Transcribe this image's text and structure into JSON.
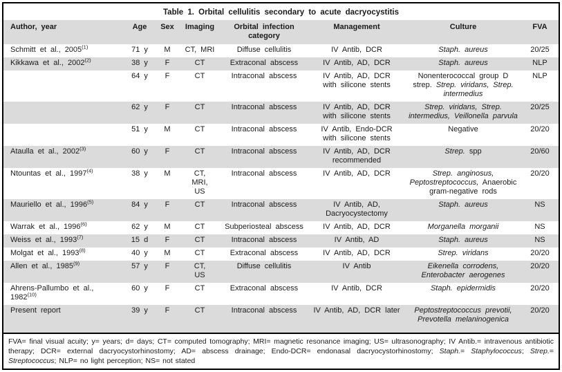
{
  "title": "Table 1. Orbital cellulitis secondary to acute dacryocystitis",
  "colors": {
    "stripe": "#dbdbdb",
    "border": "#000000",
    "text": "#1a1a1a",
    "background": "#ffffff"
  },
  "columns": [
    {
      "id": "author",
      "label": "Author, year",
      "align": "left"
    },
    {
      "id": "age",
      "label": "Age"
    },
    {
      "id": "sex",
      "label": "Sex"
    },
    {
      "id": "imaging",
      "label": "Imaging"
    },
    {
      "id": "category",
      "label": "Orbital infection category"
    },
    {
      "id": "management",
      "label": "Management"
    },
    {
      "id": "culture",
      "label": "Culture"
    },
    {
      "id": "fva",
      "label": "FVA"
    }
  ],
  "rows": [
    {
      "author": "Schmitt et al., 2005",
      "ref": "(1)",
      "age": "71 y",
      "sex": "M",
      "imaging": "CT, MRI",
      "category": "Diffuse cellulitis",
      "management": "IV Antib, DCR",
      "culture": [
        {
          "t": "Staph. aureus",
          "i": true
        }
      ],
      "fva": "20/25",
      "shaded": false
    },
    {
      "author": "Kikkawa et al., 2002",
      "ref": "(2)",
      "age": "38 y",
      "sex": "F",
      "imaging": "CT",
      "category": "Extraconal abscess",
      "management": "IV Antib, AD, DCR",
      "culture": [
        {
          "t": "Staph. aureus",
          "i": true
        }
      ],
      "fva": "NLP",
      "shaded": true
    },
    {
      "author": "",
      "ref": "",
      "age": "64 y",
      "sex": "F",
      "imaging": "CT",
      "category": "Intraconal abscess",
      "management": "IV Antib, AD, DCR\nwith silicone stents",
      "culture": [
        {
          "t": "Nonenterococcal group D strep. ",
          "i": false
        },
        {
          "t": "Strep. viridans, Strep. intermedius",
          "i": true
        }
      ],
      "fva": "NLP",
      "shaded": false
    },
    {
      "author": "",
      "ref": "",
      "age": "62 y",
      "sex": "F",
      "imaging": "CT",
      "category": "Intraconal abscess",
      "management": "IV Antib, AD, DCR\nwith silicone stents",
      "culture": [
        {
          "t": "Strep. viridans, Strep. intermedius, Veillonella parvula",
          "i": true
        }
      ],
      "fva": "20/25",
      "shaded": true
    },
    {
      "author": "",
      "ref": "",
      "age": "51 y",
      "sex": "M",
      "imaging": "CT",
      "category": "Intraconal abscess",
      "management": "IV Antib, Endo-DCR\nwith silicone stents",
      "culture": [
        {
          "t": "Negative",
          "i": false
        }
      ],
      "fva": "20/20",
      "shaded": false
    },
    {
      "author": "Ataulla et al., 2002",
      "ref": "(3)",
      "age": "60 y",
      "sex": "F",
      "imaging": "CT",
      "category": "Intraconal abscess",
      "management": "IV Antib, AD, DCR\nrecommended",
      "culture": [
        {
          "t": "Strep.",
          "i": true
        },
        {
          "t": " spp",
          "i": false
        }
      ],
      "fva": "20/60",
      "shaded": true
    },
    {
      "author": "Ntountas et al., 1997",
      "ref": "(4)",
      "age": "38 y",
      "sex": "M",
      "imaging": "CT,\nMRI,\nUS",
      "category": "Intraconal abscess",
      "management": "IV Antib, AD, DCR",
      "culture": [
        {
          "t": "Strep. anginosus, Peptostreptococcus,",
          "i": true
        },
        {
          "t": " Anaerobic gram-negative rods",
          "i": false
        }
      ],
      "fva": "20/20",
      "shaded": false
    },
    {
      "author": "Mauriello et al., 1996",
      "ref": "(5)",
      "age": "84 y",
      "sex": "F",
      "imaging": "CT",
      "category": "Intraconal abscess",
      "management": "IV Antib, AD,\nDacryocystectomy",
      "culture": [
        {
          "t": "Staph. aureus",
          "i": true
        }
      ],
      "fva": "NS",
      "shaded": true
    },
    {
      "author": "Warrak et al., 1996",
      "ref": "(6)",
      "age": "62 y",
      "sex": "M",
      "imaging": "CT",
      "category": "Subperiosteal abscess",
      "management": "IV Antib, AD, DCR",
      "culture": [
        {
          "t": "Morganella morganii",
          "i": true
        }
      ],
      "fva": "NS",
      "shaded": false
    },
    {
      "author": "Weiss et al., 1993",
      "ref": "(7)",
      "age": "15 d",
      "sex": "F",
      "imaging": "CT",
      "category": "Intraconal abscess",
      "management": "IV Antib, AD",
      "culture": [
        {
          "t": "Staph. aureus",
          "i": true
        }
      ],
      "fva": "NS",
      "shaded": true
    },
    {
      "author": "Molgat et al., 1993",
      "ref": "(8)",
      "age": "40 y",
      "sex": "M",
      "imaging": "CT",
      "category": "Extraconal abscess",
      "management": "IV Antib, AD, DCR",
      "culture": [
        {
          "t": "Strep. viridans",
          "i": true
        }
      ],
      "fva": "20/20",
      "shaded": false
    },
    {
      "author": "Allen et al., 1985",
      "ref": "(9)",
      "age": "57 y",
      "sex": "F",
      "imaging": "CT,\nUS",
      "category": "Diffuse cellulitis",
      "management": "IV Antib",
      "culture": [
        {
          "t": "Eikenella corrodens, Enterobacter aerogenes",
          "i": true
        }
      ],
      "fva": "20/20",
      "shaded": true
    },
    {
      "author": "Ahrens-Pallumbo et al., 1982",
      "ref": "(10)",
      "age": "60 y",
      "sex": "F",
      "imaging": "CT",
      "category": "Extraconal abscess",
      "management": "IV Antib, DCR",
      "culture": [
        {
          "t": "Staph. epidermidis",
          "i": true
        }
      ],
      "fva": "20/20",
      "shaded": false
    },
    {
      "author": "Present report",
      "ref": "",
      "age": "39 y",
      "sex": "F",
      "imaging": "CT",
      "category": "Intraconal abscess",
      "management": "IV Antib, AD, DCR later",
      "culture": [
        {
          "t": "Peptostreptococcus prevotii, Prevotella melaninogenica",
          "i": true
        }
      ],
      "fva": "20/20",
      "shaded": true
    }
  ],
  "footnote": [
    {
      "t": "FVA= final visual acuity; y= years; d= days; CT= computed tomography; MRI= magnetic resonance imaging; US= ultrasonography; IV Antib.= intravenous antibiotic therapy; DCR= external dacryocystorhinostomy; AD= abscess drainage; Endo-DCR= endonasal dacryocystorhinostomy; ",
      "i": false
    },
    {
      "t": "Staph.",
      "i": true
    },
    {
      "t": "= ",
      "i": false
    },
    {
      "t": "Staphylococcus",
      "i": true
    },
    {
      "t": "; ",
      "i": false
    },
    {
      "t": "Strep.",
      "i": true
    },
    {
      "t": "= ",
      "i": false
    },
    {
      "t": "Streptococcus",
      "i": true
    },
    {
      "t": "; NLP= no light perception; NS= not stated",
      "i": false
    }
  ]
}
